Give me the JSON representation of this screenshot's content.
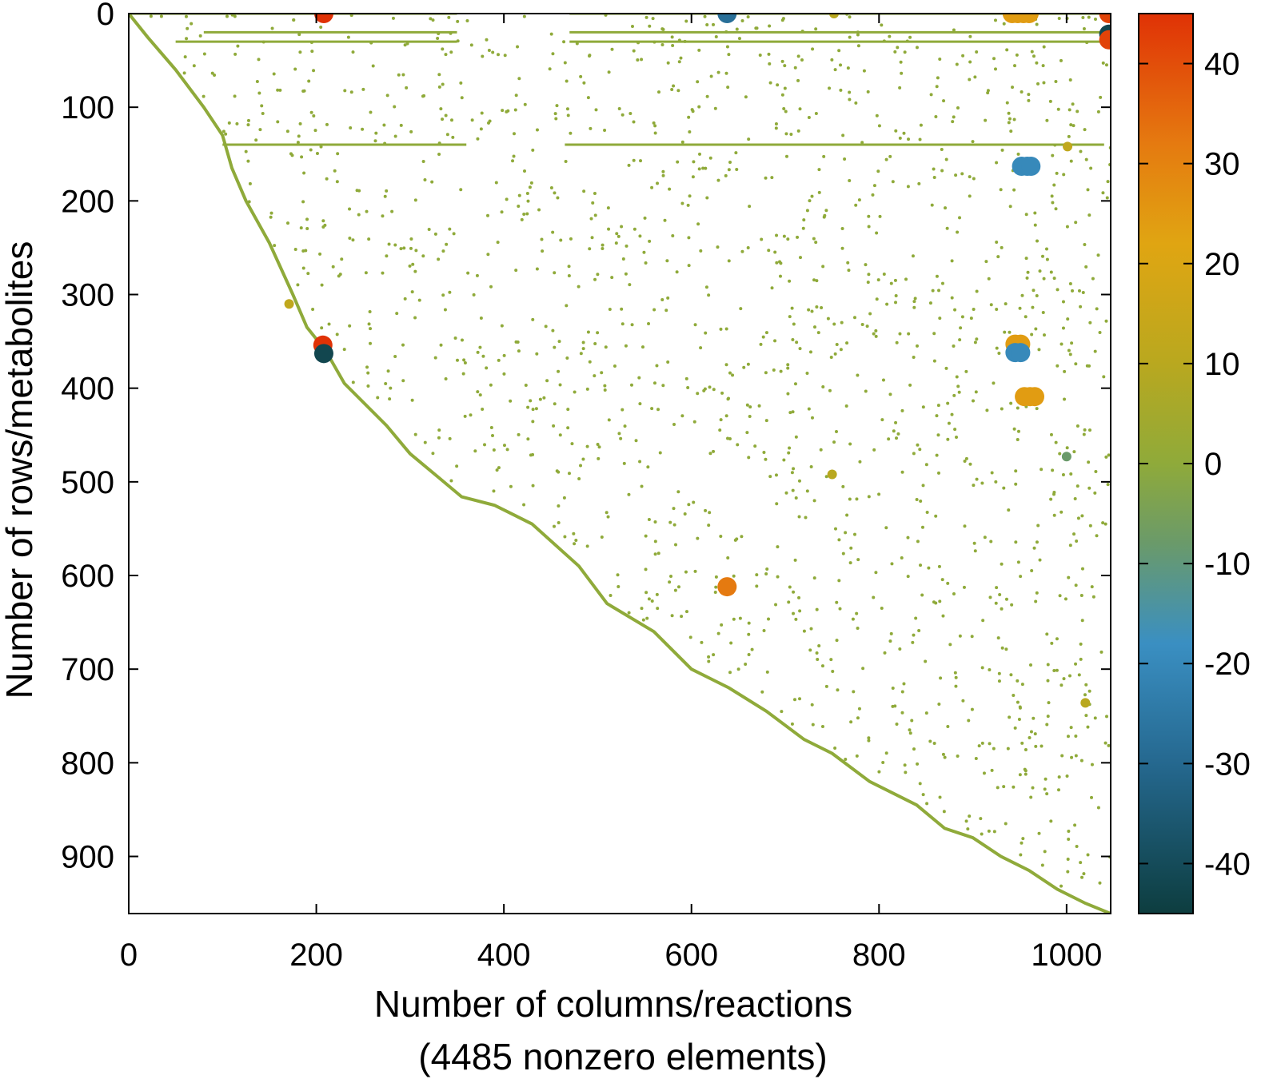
{
  "chart_data": {
    "type": "scatter",
    "title": "",
    "xlabel": "Number of columns/reactions",
    "xlabel_sub": "(4485 nonzero elements)",
    "ylabel": "Number of rows/metabolites",
    "xlim": [
      0,
      1047
    ],
    "ylim": [
      961,
      0
    ],
    "y_inverted": true,
    "grid": false,
    "xticks": [
      0,
      200,
      400,
      600,
      800,
      1000
    ],
    "xtick_labels": [
      "0",
      "200",
      "400",
      "600",
      "800",
      "1000"
    ],
    "yticks": [
      0,
      100,
      200,
      300,
      400,
      500,
      600,
      700,
      800,
      900
    ],
    "ytick_labels": [
      "0",
      "100",
      "200",
      "300",
      "400",
      "500",
      "600",
      "700",
      "800",
      "900"
    ],
    "colorbar": {
      "range": [
        -45,
        45
      ],
      "ticks": [
        40,
        30,
        20,
        10,
        0,
        -10,
        -20,
        -30,
        -40
      ],
      "tick_labels": [
        "40",
        "30",
        "20",
        "10",
        "0",
        "-10",
        "-20",
        "-30",
        "-40"
      ],
      "colormap": [
        {
          "v": -45,
          "color": "#0d3d3f"
        },
        {
          "v": -30,
          "color": "#25688f"
        },
        {
          "v": -18,
          "color": "#3a8fc2"
        },
        {
          "v": -8,
          "color": "#6a9a6a"
        },
        {
          "v": 0,
          "color": "#8faa3a"
        },
        {
          "v": 10,
          "color": "#b9a81f"
        },
        {
          "v": 22,
          "color": "#e0a512"
        },
        {
          "v": 32,
          "color": "#e57a10"
        },
        {
          "v": 45,
          "color": "#e03206"
        }
      ]
    },
    "diagonal_band": [
      [
        0,
        0
      ],
      [
        20,
        25
      ],
      [
        50,
        60
      ],
      [
        80,
        100
      ],
      [
        100,
        130
      ],
      [
        110,
        165
      ],
      [
        125,
        200
      ],
      [
        150,
        245
      ],
      [
        175,
        300
      ],
      [
        190,
        335
      ],
      [
        210,
        360
      ],
      [
        230,
        395
      ],
      [
        275,
        440
      ],
      [
        300,
        470
      ],
      [
        330,
        495
      ],
      [
        355,
        516
      ],
      [
        390,
        525
      ],
      [
        430,
        545
      ],
      [
        480,
        590
      ],
      [
        510,
        630
      ],
      [
        560,
        660
      ],
      [
        600,
        700
      ],
      [
        640,
        720
      ],
      [
        680,
        745
      ],
      [
        720,
        775
      ],
      [
        750,
        790
      ],
      [
        790,
        820
      ],
      [
        840,
        845
      ],
      [
        870,
        870
      ],
      [
        900,
        880
      ],
      [
        930,
        900
      ],
      [
        960,
        915
      ],
      [
        990,
        935
      ],
      [
        1020,
        950
      ],
      [
        1047,
        961
      ]
    ],
    "row_bands": [
      {
        "y": 0,
        "x_start": 0,
        "x_end": 350,
        "value": 0
      },
      {
        "y": 0,
        "x_start": 470,
        "x_end": 1040,
        "value": 0
      },
      {
        "y": 20,
        "x_start": 80,
        "x_end": 350,
        "value": 0
      },
      {
        "y": 20,
        "x_start": 470,
        "x_end": 1040,
        "value": 0
      },
      {
        "y": 30,
        "x_start": 50,
        "x_end": 350,
        "value": 0
      },
      {
        "y": 30,
        "x_start": 470,
        "x_end": 1040,
        "value": 0
      },
      {
        "y": 140,
        "x_start": 100,
        "x_end": 360,
        "value": 0
      },
      {
        "y": 140,
        "x_start": 465,
        "x_end": 1040,
        "value": 0
      }
    ],
    "points": [
      {
        "x": 208,
        "y": 0,
        "value": 45,
        "size": "large"
      },
      {
        "x": 638,
        "y": 0,
        "value": -28,
        "size": "large"
      },
      {
        "x": 942,
        "y": 0,
        "value": 24,
        "size": "large"
      },
      {
        "x": 948,
        "y": 0,
        "value": 24,
        "size": "large"
      },
      {
        "x": 954,
        "y": 0,
        "value": 24,
        "size": "large"
      },
      {
        "x": 960,
        "y": 0,
        "value": 24,
        "size": "large"
      },
      {
        "x": 1045,
        "y": 0,
        "value": 42,
        "size": "large"
      },
      {
        "x": 1045,
        "y": 22,
        "value": -42,
        "size": "large"
      },
      {
        "x": 1045,
        "y": 28,
        "value": 42,
        "size": "large"
      },
      {
        "x": 1001,
        "y": 142,
        "value": 12,
        "size": "small"
      },
      {
        "x": 952,
        "y": 163,
        "value": -20,
        "size": "large"
      },
      {
        "x": 958,
        "y": 163,
        "value": -20,
        "size": "large"
      },
      {
        "x": 962,
        "y": 163,
        "value": -20,
        "size": "large"
      },
      {
        "x": 171,
        "y": 310,
        "value": 12,
        "size": "small"
      },
      {
        "x": 207,
        "y": 354,
        "value": 45,
        "size": "large"
      },
      {
        "x": 208,
        "y": 363,
        "value": -42,
        "size": "large"
      },
      {
        "x": 945,
        "y": 353,
        "value": 24,
        "size": "large"
      },
      {
        "x": 951,
        "y": 353,
        "value": 24,
        "size": "large"
      },
      {
        "x": 945,
        "y": 362,
        "value": -20,
        "size": "large"
      },
      {
        "x": 951,
        "y": 362,
        "value": -20,
        "size": "large"
      },
      {
        "x": 955,
        "y": 409,
        "value": 24,
        "size": "large"
      },
      {
        "x": 961,
        "y": 409,
        "value": 24,
        "size": "large"
      },
      {
        "x": 966,
        "y": 409,
        "value": 24,
        "size": "large"
      },
      {
        "x": 750,
        "y": 492,
        "value": 10,
        "size": "small"
      },
      {
        "x": 1000,
        "y": 473,
        "value": -8,
        "size": "small"
      },
      {
        "x": 638,
        "y": 612,
        "value": 32,
        "size": "large"
      },
      {
        "x": 1020,
        "y": 736,
        "value": 10,
        "size": "small"
      },
      {
        "x": 752,
        "y": 0,
        "value": 10,
        "size": "small"
      }
    ],
    "scattered_nonzeros_value": 0
  }
}
